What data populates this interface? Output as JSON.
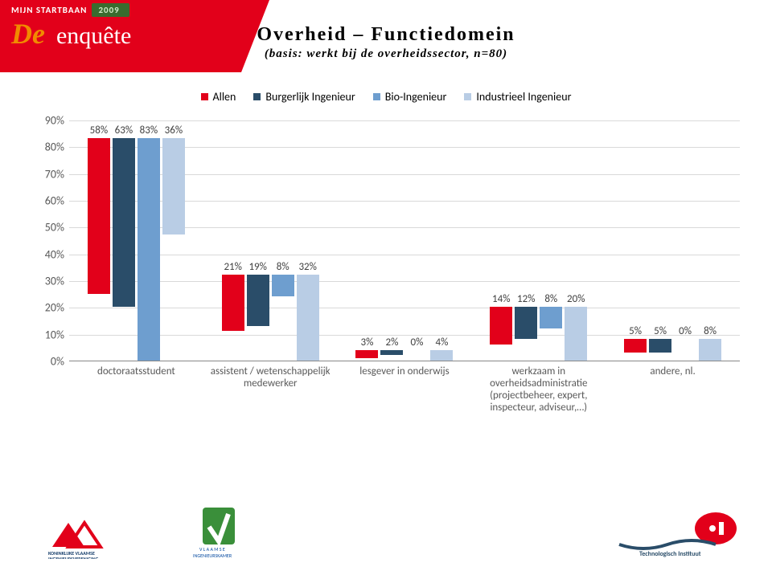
{
  "header": {
    "topline": "MIJN STARTBAAN",
    "year": "2009",
    "word1": "De",
    "word2": "enquête"
  },
  "title": "Overheid – Functiedomein",
  "subtitle": "(basis: werkt bij de overheidssector, n=80)",
  "legend": [
    {
      "label": "Allen",
      "color": "#e2001a"
    },
    {
      "label": "Burgerlijk Ingenieur",
      "color": "#2a4d69"
    },
    {
      "label": "Bio-Ingenieur",
      "color": "#6e9ecf"
    },
    {
      "label": "Industrieel Ingenieur",
      "color": "#b9cde5"
    }
  ],
  "chart": {
    "type": "bar",
    "ylim": [
      0,
      90
    ],
    "ytick_step": 10,
    "background_color": "#ffffff",
    "grid_color": "#d9d9d9",
    "series_colors": [
      "#e2001a",
      "#2a4d69",
      "#6e9ecf",
      "#b9cde5"
    ],
    "categories": [
      {
        "label": "doctoraatsstudent",
        "shown": [
          "58%",
          "63%",
          "83%",
          "36%"
        ],
        "values": [
          58,
          63,
          83,
          36
        ]
      },
      {
        "label": "assistent / wetenschappelijk medewerker",
        "shown": [
          "21%",
          "19%",
          "8%",
          "32%"
        ],
        "values": [
          21,
          19,
          8,
          32
        ]
      },
      {
        "label": "lesgever in onderwijs",
        "shown": [
          "3%",
          "2%",
          "0%",
          "4%"
        ],
        "values": [
          3,
          2,
          0,
          4
        ]
      },
      {
        "label": "werkzaam in overheidsadministratie (projectbeheer, expert, inspecteur, adviseur,…)",
        "shown": [
          "14%",
          "12%",
          "8%",
          "20%"
        ],
        "values": [
          14,
          12,
          8,
          20
        ]
      },
      {
        "label": "andere, nl.",
        "shown": [
          "5%",
          "5%",
          "0%",
          "8%"
        ],
        "values": [
          5,
          5,
          0,
          8
        ]
      }
    ]
  }
}
